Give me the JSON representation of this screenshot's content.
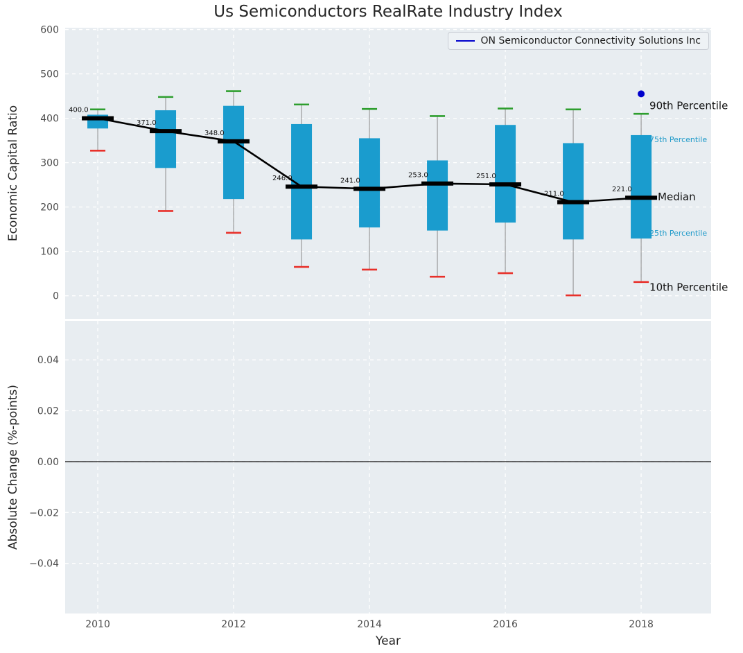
{
  "title": "Us Semiconductors RealRate Industry Index",
  "legend": {
    "label": "ON Semiconductor Connectivity Solutions Inc"
  },
  "colors": {
    "axes_bg": "#e8edf1",
    "grid": "#ffffff",
    "box": "#1a9cce",
    "cap_high": "#2e9e2e",
    "cap_low": "#e8302a",
    "median": "#000000",
    "company": "#0000cc",
    "tick": "#4d4d4d",
    "percentile_text": "#1f9ac9"
  },
  "chart_data": [
    {
      "type": "boxplot",
      "title": "Us Semiconductors RealRate Industry Index",
      "ylabel": "Economic Capital Ratio",
      "xlabel": "Year",
      "years": [
        2010,
        2011,
        2012,
        2013,
        2014,
        2015,
        2016,
        2017,
        2018
      ],
      "xticks": [
        "2010",
        "2012",
        "2014",
        "2016",
        "2018"
      ],
      "xtick_years": [
        2010,
        2012,
        2014,
        2016,
        2018
      ],
      "yticks": [
        0,
        100,
        200,
        300,
        400,
        500,
        600
      ],
      "ylim": [
        -52,
        604
      ],
      "grid": "dashed-white",
      "legend_position": "upper-right",
      "series": [
        {
          "name": "90th Percentile",
          "values": [
            420,
            448,
            461,
            431,
            421,
            405,
            422,
            420,
            410
          ]
        },
        {
          "name": "75th Percentile",
          "values": [
            408,
            418,
            428,
            387,
            355,
            305,
            385,
            344,
            362
          ]
        },
        {
          "name": "Median",
          "values": [
            400,
            371,
            348,
            246,
            241,
            253,
            251,
            211,
            221
          ]
        },
        {
          "name": "25th Percentile",
          "values": [
            377,
            288,
            218,
            127,
            154,
            147,
            165,
            127,
            129
          ]
        },
        {
          "name": "10th Percentile",
          "values": [
            327,
            191,
            142,
            65,
            59,
            43,
            51,
            1,
            31
          ]
        }
      ],
      "median_labels": [
        "400.0",
        "371.0",
        "348.0",
        "246.0",
        "241.0",
        "253.0",
        "251.0",
        "211.0",
        "221.0"
      ],
      "company_point": {
        "name": "ON Semiconductor Connectivity Solutions Inc",
        "year": 2018,
        "value": 455
      },
      "annotations": [
        {
          "label": "90th Percentile",
          "value": 428,
          "style": "strong",
          "dx": 12
        },
        {
          "label": "75th Percentile",
          "value": 354,
          "style": "small",
          "dx": 12
        },
        {
          "label": "Median",
          "value": 223,
          "style": "strong",
          "dx": 24
        },
        {
          "label": "25th Percentile",
          "value": 143,
          "style": "small",
          "dx": 12
        },
        {
          "label": "10th Percentile",
          "value": 19,
          "style": "strong",
          "dx": 12
        }
      ]
    },
    {
      "type": "line",
      "ylabel": "Absolute Change (%-points)",
      "xlabel": "Year",
      "yticks": [
        "0.04",
        "0.02",
        "0.00",
        "−0.02",
        "−0.04"
      ],
      "ytick_values": [
        0.04,
        0.02,
        0.0,
        -0.02,
        -0.04
      ],
      "ylim": [
        -0.0597,
        0.0553
      ],
      "zero_line": 0.0
    }
  ]
}
